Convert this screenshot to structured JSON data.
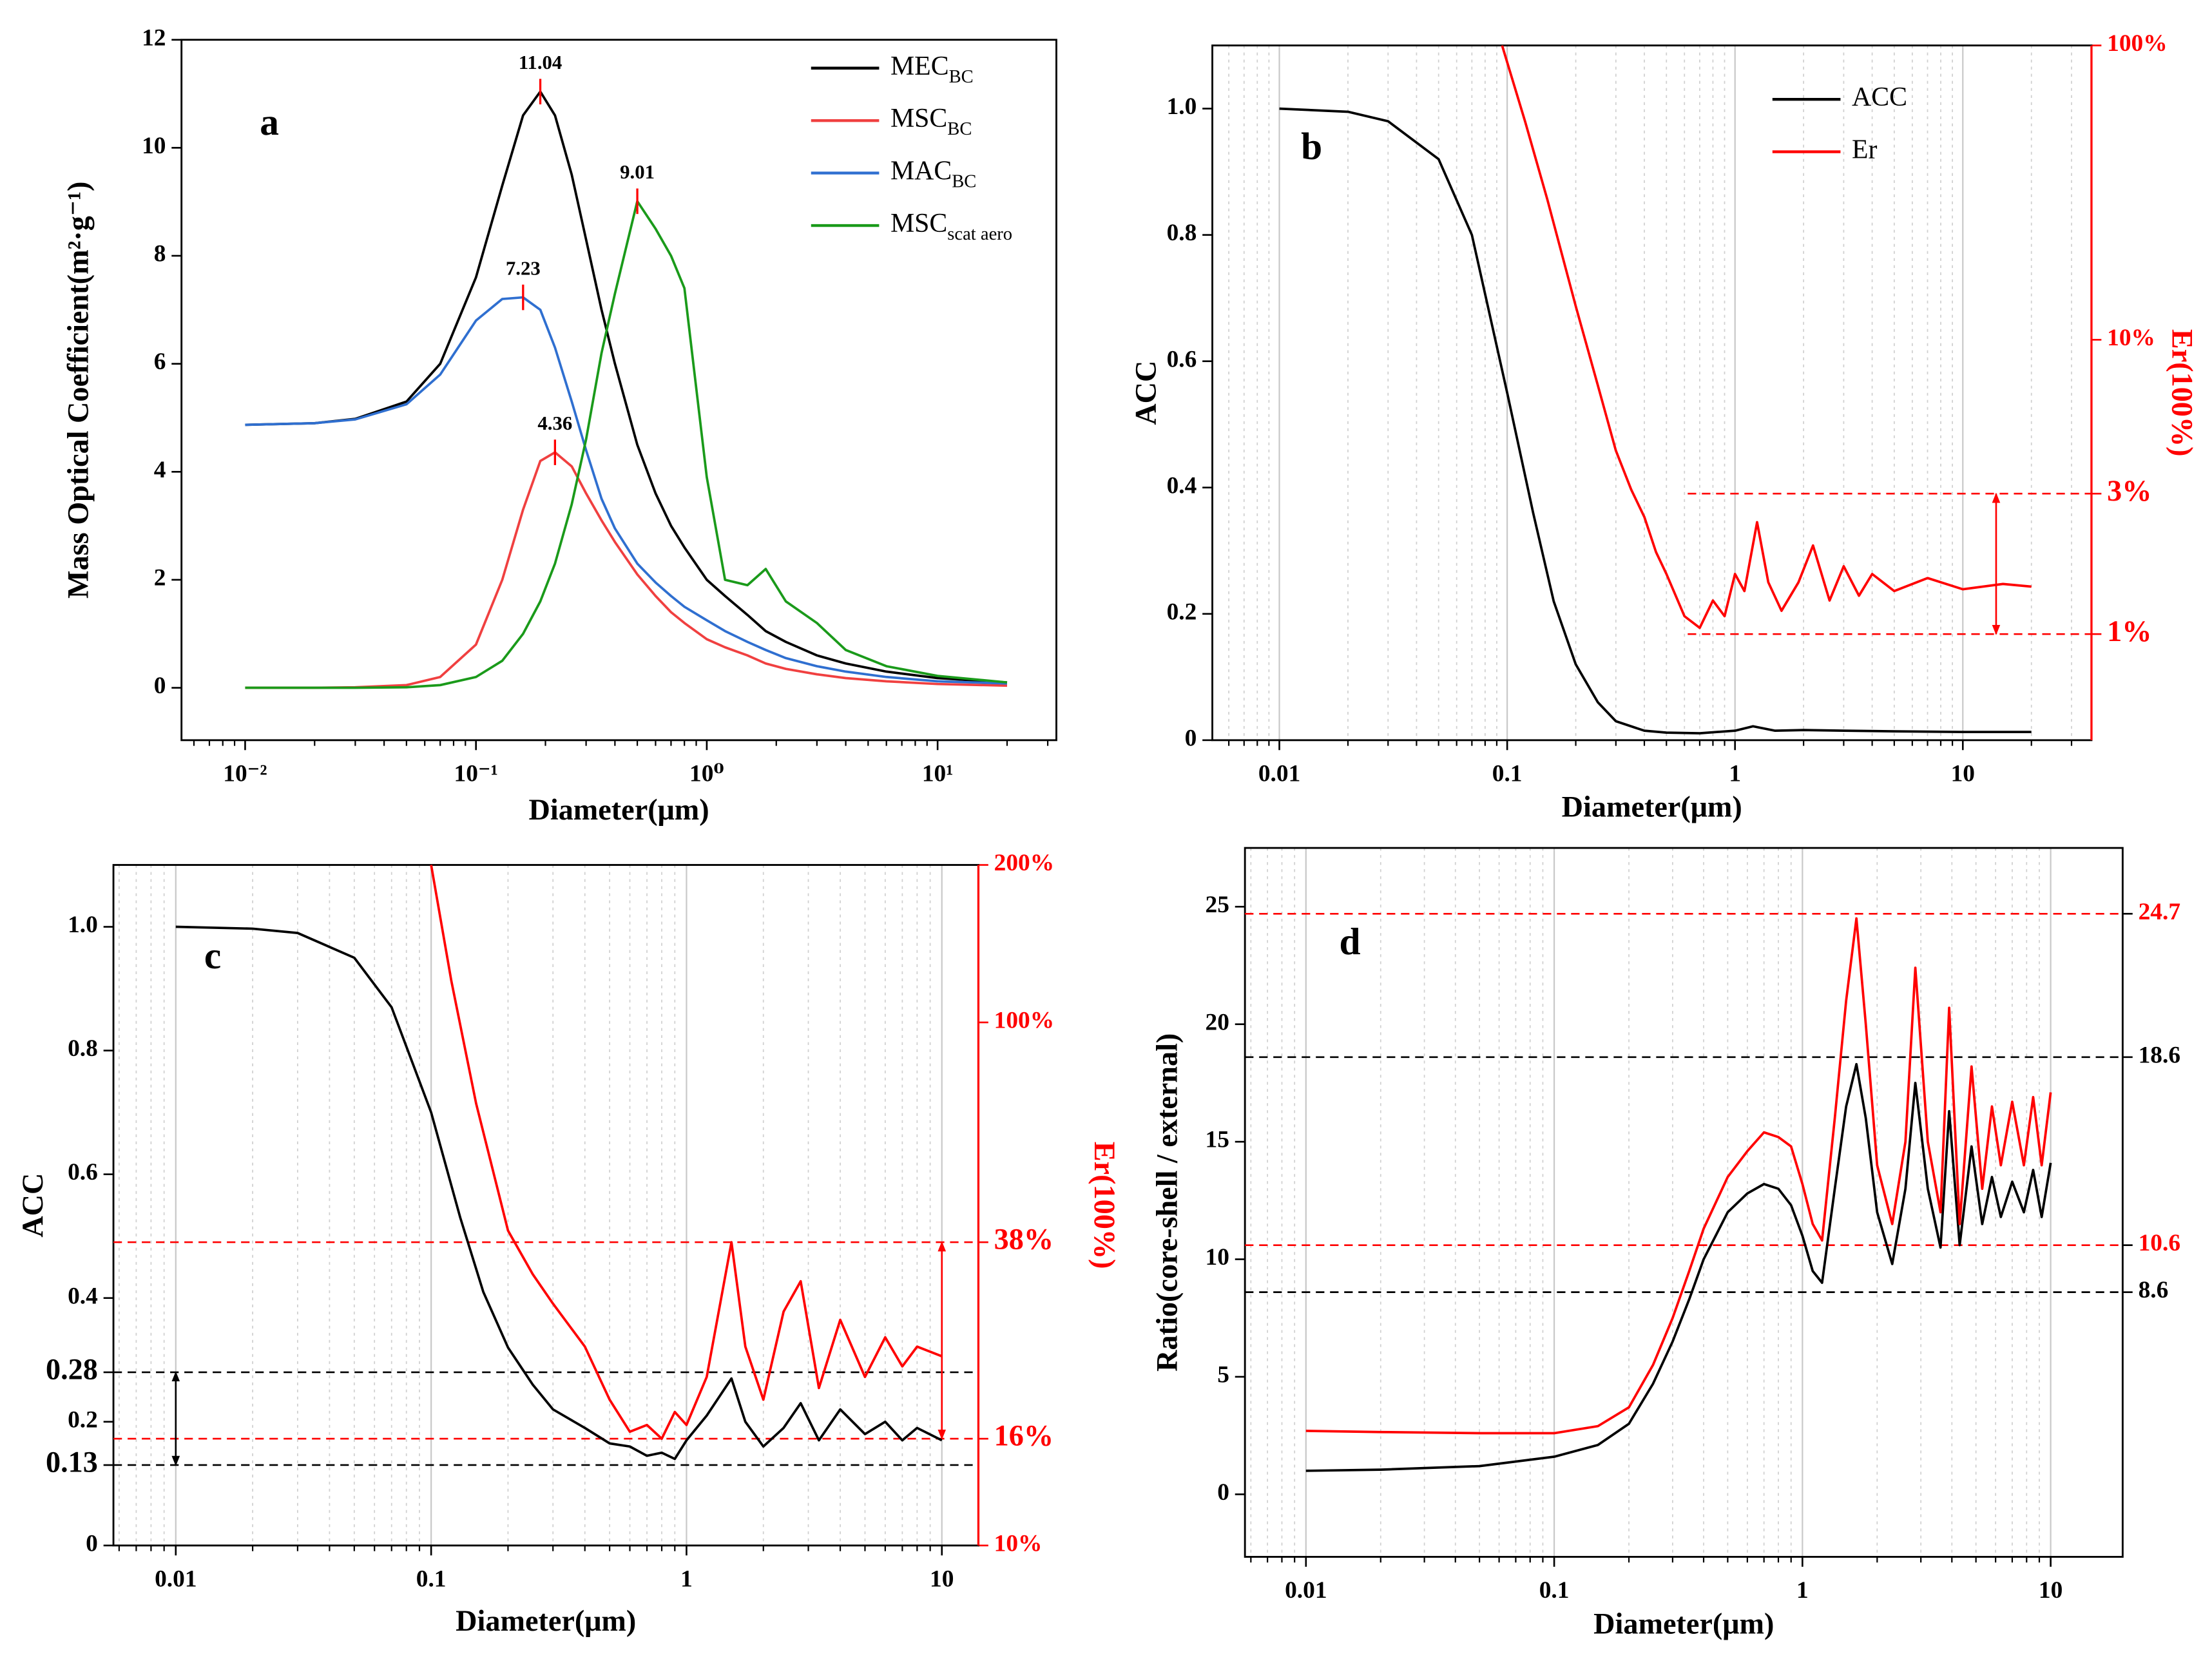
{
  "chart_data": [
    {
      "type": "line",
      "xlog": true,
      "xlim": [
        0.0053,
        32.7
      ],
      "xticks": [
        {
          "value": 0.01,
          "label": "10⁻²"
        },
        {
          "value": 0.1,
          "label": "10⁻¹"
        },
        {
          "value": 1,
          "label": "10⁰"
        },
        {
          "value": 10,
          "label": "10¹"
        }
      ],
      "ylim": [
        -0.97,
        12
      ],
      "yticks": [
        0,
        2,
        4,
        6,
        8,
        10,
        12
      ],
      "xlabel": "Diameter(μm)",
      "ylabel": "Mass Optical Coefficient(m²·g⁻¹)",
      "panel_label": "a",
      "grid": false,
      "legend": "upper right",
      "x": [
        0.01,
        0.02,
        0.03,
        0.05,
        0.07,
        0.1,
        0.13,
        0.16,
        0.19,
        0.22,
        0.26,
        0.3,
        0.35,
        0.4,
        0.5,
        0.6,
        0.7,
        0.8,
        1,
        1.2,
        1.5,
        1.8,
        2.2,
        3,
        4,
        6,
        10,
        20
      ],
      "series": [
        {
          "name": "MEC",
          "subscript": "BC",
          "color": "#000000",
          "values": [
            4.87,
            4.9,
            4.98,
            5.3,
            6.0,
            7.6,
            9.3,
            10.6,
            11.04,
            10.6,
            9.5,
            8.3,
            7.0,
            6.0,
            4.5,
            3.6,
            3.0,
            2.6,
            2.0,
            1.7,
            1.35,
            1.05,
            0.85,
            0.6,
            0.45,
            0.3,
            0.18,
            0.1
          ]
        },
        {
          "name": "MSC",
          "subscript": "BC",
          "color": "#f04040",
          "values": [
            0,
            0,
            0.01,
            0.05,
            0.2,
            0.8,
            2.0,
            3.3,
            4.2,
            4.36,
            4.1,
            3.6,
            3.1,
            2.7,
            2.1,
            1.7,
            1.4,
            1.2,
            0.9,
            0.75,
            0.6,
            0.45,
            0.35,
            0.25,
            0.18,
            0.12,
            0.07,
            0.04
          ]
        },
        {
          "name": "MAC",
          "subscript": "BC",
          "color": "#2f6fd0",
          "values": [
            4.87,
            4.9,
            4.97,
            5.25,
            5.8,
            6.8,
            7.2,
            7.23,
            7.0,
            6.3,
            5.3,
            4.4,
            3.5,
            2.95,
            2.3,
            1.95,
            1.7,
            1.5,
            1.25,
            1.05,
            0.85,
            0.7,
            0.55,
            0.4,
            0.3,
            0.2,
            0.12,
            0.08
          ]
        },
        {
          "name": "MSC",
          "subscript": "scat aero",
          "color": "#1a9a1a",
          "values": [
            0,
            0,
            0,
            0.01,
            0.05,
            0.2,
            0.5,
            1.0,
            1.6,
            2.3,
            3.4,
            4.6,
            6.2,
            7.3,
            9.01,
            8.5,
            8.0,
            7.4,
            3.9,
            2.0,
            1.9,
            2.2,
            1.6,
            1.2,
            0.7,
            0.4,
            0.22,
            0.1
          ]
        }
      ],
      "annotations": [
        {
          "x": 0.19,
          "value": 11.04
        },
        {
          "x": 0.16,
          "value": 7.23
        },
        {
          "x": 0.22,
          "value": 4.36
        },
        {
          "x": 0.5,
          "value": 9.01
        }
      ]
    },
    {
      "type": "line",
      "xlog": true,
      "xlim": [
        0.00508,
        36.7
      ],
      "xticks": [
        0.01,
        0.1,
        1,
        10
      ],
      "ylim": [
        0,
        1.1
      ],
      "yticks": [
        0,
        0.2,
        0.4,
        0.6,
        0.8,
        {
          "value": 1,
          "label": "1.0"
        }
      ],
      "y2log": true,
      "y2lim": [
        0.436,
        100
      ],
      "y2ticks": [
        {
          "value": 1,
          "label": "1%"
        },
        {
          "value": 3,
          "label": "3%"
        },
        {
          "value": 10,
          "label": "10%"
        },
        {
          "value": 100,
          "label": "100%"
        }
      ],
      "y2color": "#ff0000",
      "xlabel": "Diameter(μm)",
      "ylabel": "ACC",
      "y2label": "Er(100%)",
      "panel_label": "b",
      "grid": true,
      "legend": "upper center",
      "series": [
        {
          "name": "ACC",
          "color": "#000000",
          "x": [
            0.01,
            0.02,
            0.03,
            0.05,
            0.07,
            0.1,
            0.13,
            0.16,
            0.2,
            0.25,
            0.3,
            0.4,
            0.5,
            0.7,
            1,
            1.2,
            1.5,
            2,
            3,
            5,
            10,
            20
          ],
          "values": [
            1,
            0.995,
            0.98,
            0.92,
            0.8,
            0.55,
            0.36,
            0.22,
            0.12,
            0.06,
            0.03,
            0.015,
            0.012,
            0.011,
            0.015,
            0.022,
            0.015,
            0.016,
            0.015,
            0.014,
            0.013,
            0.013
          ]
        },
        {
          "name": "Er",
          "color": "#ff0000",
          "axis": "y2",
          "x": [
            0.095,
            0.12,
            0.15,
            0.2,
            0.25,
            0.3,
            0.35,
            0.4,
            0.45,
            0.5,
            0.6,
            0.7,
            0.8,
            0.9,
            1,
            1.1,
            1.25,
            1.4,
            1.6,
            1.9,
            2.2,
            2.6,
            3,
            3.5,
            4,
            5,
            7,
            10,
            15,
            20
          ],
          "values": [
            100,
            55,
            30,
            13,
            7,
            4.2,
            3.1,
            2.5,
            1.9,
            1.6,
            1.15,
            1.05,
            1.3,
            1.15,
            1.6,
            1.4,
            2.4,
            1.5,
            1.2,
            1.5,
            2.0,
            1.3,
            1.7,
            1.35,
            1.6,
            1.4,
            1.55,
            1.42,
            1.48,
            1.45
          ]
        }
      ],
      "hlines": [
        {
          "value": 3,
          "axis": "y2",
          "from": 0.62,
          "color": "#ff0000"
        },
        {
          "value": 1,
          "axis": "y2",
          "from": 0.62,
          "color": "#ff0000"
        }
      ],
      "arrows": [
        {
          "x": 14,
          "from": 1,
          "to": 3,
          "axis": "y2",
          "color": "#ff0000"
        }
      ]
    },
    {
      "type": "line",
      "xlog": true,
      "xlim": [
        0.0057,
        13.9
      ],
      "xticks": [
        0.01,
        0.1,
        1,
        10
      ],
      "ylim": [
        0,
        1.1
      ],
      "yticks": [
        0,
        0.13,
        0.2,
        0.28,
        0.4,
        0.6,
        0.8,
        {
          "value": 1,
          "label": "1.0"
        }
      ],
      "y2log": true,
      "y2lim": [
        10,
        200
      ],
      "y2ticks": [
        {
          "value": 10,
          "label": "10%"
        },
        {
          "value": 16,
          "label": "16%"
        },
        {
          "value": 38,
          "label": "38%"
        },
        {
          "value": 100,
          "label": "100%"
        },
        {
          "value": 200,
          "label": "200%"
        }
      ],
      "y2color": "#ff0000",
      "xlabel": "Diameter(μm)",
      "ylabel": "ACC",
      "y2label": "Er(100%)",
      "panel_label": "c",
      "grid": true,
      "series": [
        {
          "color": "#000000",
          "x": [
            0.01,
            0.02,
            0.03,
            0.05,
            0.07,
            0.1,
            0.13,
            0.16,
            0.2,
            0.25,
            0.3,
            0.4,
            0.5,
            0.6,
            0.7,
            0.8,
            0.9,
            1,
            1.2,
            1.5,
            1.7,
            2,
            2.4,
            2.8,
            3.3,
            4,
            5,
            6,
            7,
            8,
            10
          ],
          "values": [
            1,
            0.997,
            0.99,
            0.95,
            0.87,
            0.7,
            0.53,
            0.41,
            0.32,
            0.26,
            0.22,
            0.19,
            0.165,
            0.16,
            0.145,
            0.15,
            0.14,
            0.17,
            0.21,
            0.27,
            0.2,
            0.16,
            0.19,
            0.23,
            0.17,
            0.22,
            0.18,
            0.2,
            0.17,
            0.19,
            0.17
          ]
        },
        {
          "color": "#ff0000",
          "axis": "y2",
          "x": [
            0.1,
            0.12,
            0.15,
            0.2,
            0.25,
            0.3,
            0.4,
            0.5,
            0.6,
            0.7,
            0.8,
            0.9,
            1,
            1.2,
            1.5,
            1.7,
            2,
            2.4,
            2.8,
            3.3,
            4,
            5,
            6,
            7,
            8,
            10
          ],
          "values": [
            200,
            120,
            70,
            40,
            33,
            29,
            24,
            19,
            16.5,
            17,
            16,
            18,
            17,
            21,
            38,
            24,
            19,
            28,
            32,
            20,
            27,
            21,
            25,
            22,
            24,
            23
          ]
        }
      ],
      "hlines": [
        {
          "value": 0.28,
          "axis": "y",
          "color": "#000000"
        },
        {
          "value": 0.13,
          "axis": "y",
          "color": "#000000"
        },
        {
          "value": 38,
          "axis": "y2",
          "color": "#ff0000"
        },
        {
          "value": 16,
          "axis": "y2",
          "color": "#ff0000"
        }
      ],
      "arrows": [
        {
          "x": 0.01,
          "from": 0.13,
          "to": 0.28,
          "axis": "y",
          "color": "#000000"
        },
        {
          "x": 10,
          "from": 16,
          "to": 38,
          "axis": "y2",
          "color": "#ff0000"
        }
      ]
    },
    {
      "type": "line",
      "xlog": true,
      "xlim": [
        0.00568,
        19.5
      ],
      "xticks": [
        0.01,
        0.1,
        1,
        10
      ],
      "ylim": [
        -2.66,
        27.5
      ],
      "yticks": [
        0,
        5,
        10,
        15,
        20,
        25
      ],
      "y2lim": [
        -2.66,
        27.5
      ],
      "y2ticks": [
        8.6,
        10.6,
        18.6,
        24.7
      ],
      "y2tick_colors": [
        "#000000",
        "#ff0000",
        "#000000",
        "#ff0000"
      ],
      "xlabel": "Diameter(μm)",
      "ylabel": "Ratio(core-shell / external)",
      "panel_label": "d",
      "grid": true,
      "x": [
        0.01,
        0.02,
        0.05,
        0.1,
        0.15,
        0.2,
        0.25,
        0.3,
        0.35,
        0.4,
        0.5,
        0.6,
        0.7,
        0.8,
        0.9,
        1,
        1.1,
        1.2,
        1.35,
        1.5,
        1.65,
        1.8,
        2,
        2.3,
        2.6,
        2.85,
        3.2,
        3.6,
        3.9,
        4.3,
        4.8,
        5.3,
        5.8,
        6.3,
        7,
        7.8,
        8.5,
        9.2,
        10
      ],
      "series": [
        {
          "color": "#000000",
          "values": [
            1.0,
            1.05,
            1.2,
            1.6,
            2.1,
            3.0,
            4.7,
            6.5,
            8.3,
            10,
            12,
            12.8,
            13.2,
            13.0,
            12.3,
            11,
            9.5,
            9.0,
            13,
            16.5,
            18.3,
            16,
            12,
            9.8,
            13,
            17.5,
            13,
            10.5,
            16.3,
            10.6,
            14.8,
            11.5,
            13.5,
            11.8,
            13.3,
            12,
            13.8,
            11.8,
            14.1
          ]
        },
        {
          "color": "#ff0000",
          "values": [
            2.7,
            2.65,
            2.6,
            2.6,
            2.9,
            3.7,
            5.5,
            7.5,
            9.5,
            11.3,
            13.5,
            14.6,
            15.4,
            15.2,
            14.8,
            13.2,
            11.5,
            10.8,
            16,
            21,
            24.5,
            20,
            14,
            11.5,
            15,
            22.4,
            15,
            12,
            20.7,
            11.5,
            18.2,
            13,
            16.5,
            14,
            16.7,
            14,
            16.9,
            14,
            17.1
          ]
        }
      ],
      "hlines": [
        {
          "value": 24.7,
          "axis": "y",
          "color": "#ff0000"
        },
        {
          "value": 18.6,
          "axis": "y",
          "color": "#000000"
        },
        {
          "value": 10.6,
          "axis": "y",
          "color": "#ff0000"
        },
        {
          "value": 8.6,
          "axis": "y",
          "color": "#000000"
        }
      ]
    }
  ]
}
